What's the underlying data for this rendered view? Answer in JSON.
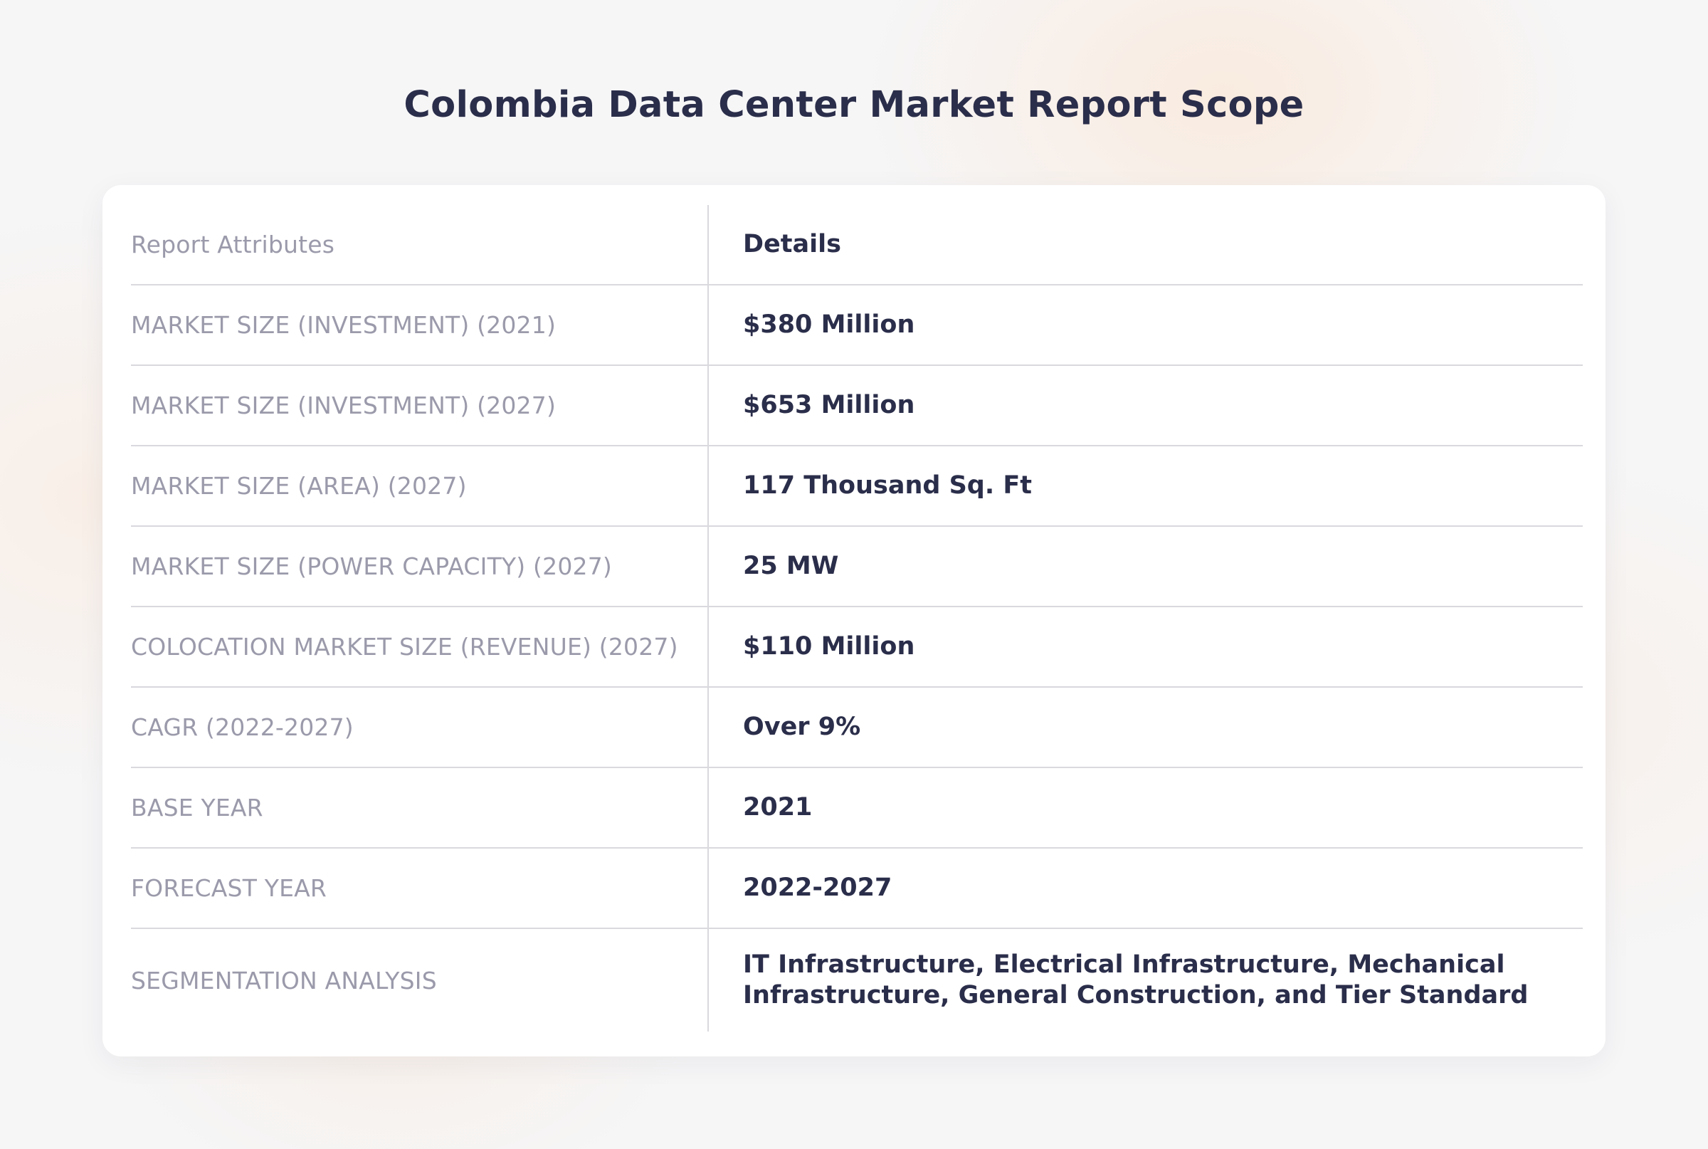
{
  "title": "Colombia Data Center Market Report Scope",
  "table": {
    "header": {
      "attribute": "Report Attributes",
      "detail": "Details"
    },
    "rows": [
      {
        "attribute": "MARKET SIZE (INVESTMENT) (2021)",
        "detail": "$380 Million"
      },
      {
        "attribute": "MARKET SIZE (INVESTMENT) (2027)",
        "detail": "$653 Million"
      },
      {
        "attribute": "MARKET SIZE (AREA) (2027)",
        "detail": "117 Thousand Sq. Ft"
      },
      {
        "attribute": "MARKET SIZE (POWER CAPACITY) (2027)",
        "detail": "25 MW"
      },
      {
        "attribute": "COLOCATION MARKET SIZE (REVENUE) (2027)",
        "detail": "$110 Million"
      },
      {
        "attribute": "CAGR (2022-2027)",
        "detail": "Over 9%"
      },
      {
        "attribute": "BASE YEAR",
        "detail": "2021"
      },
      {
        "attribute": "FORECAST YEAR",
        "detail": "2022-2027"
      },
      {
        "attribute": "SEGMENTATION ANALYSIS",
        "detail": "IT Infrastructure, Electrical Infrastructure, Mechanical Infrastructure, General Construction, and Tier Standard"
      }
    ]
  },
  "colors": {
    "title_text": "#2b2e4a",
    "attribute_text": "#9a9aab",
    "detail_text": "#2b2e4a",
    "divider": "#d9d9de",
    "card_background": "#ffffff",
    "page_background": "#f6f6f7"
  }
}
